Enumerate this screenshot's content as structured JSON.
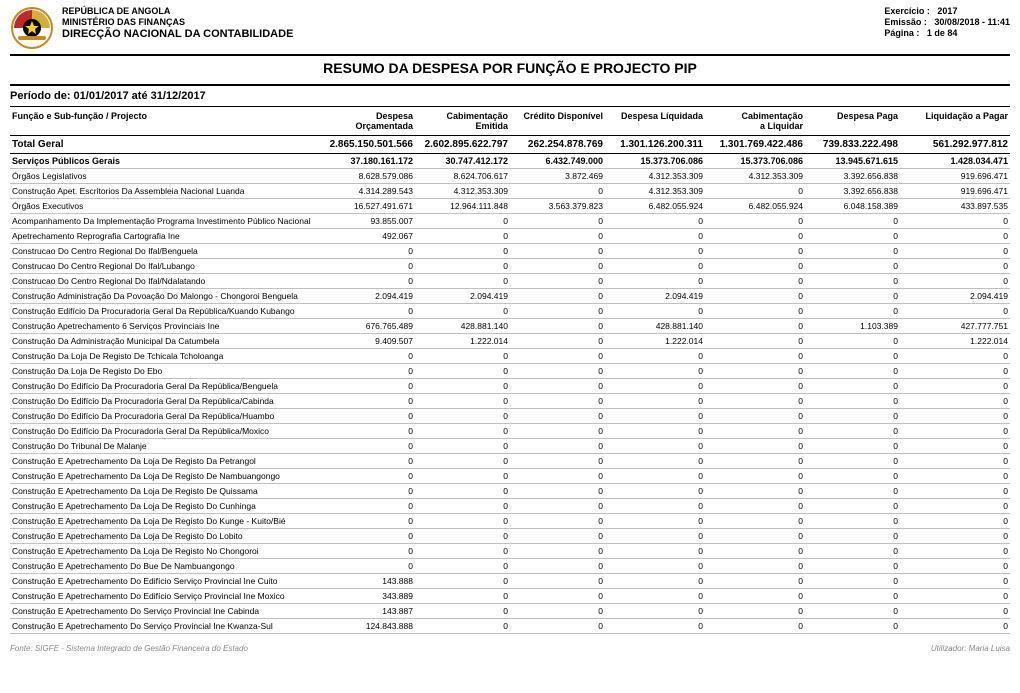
{
  "header": {
    "republica": "REPÚBLICA DE ANGOLA",
    "ministerio": "MINISTÉRIO DAS FINANÇAS",
    "direccao": "DIRECÇÃO NACIONAL DA CONTABILIDADE",
    "exercicio_label": "Exercício :",
    "exercicio_value": "2017",
    "emissao_label": "Emissão   :",
    "emissao_value": "30/08/2018  -  11:41",
    "pagina_label": "Página     :",
    "pagina_value": "1  de 84"
  },
  "title": "RESUMO DA DESPESA POR FUNÇÃO E PROJECTO PIP",
  "periodo": "Período de: 01/01/2017 até 31/12/2017",
  "columns": {
    "widths": [
      310,
      95,
      95,
      95,
      100,
      100,
      95,
      110
    ],
    "headers": [
      "Função e Sub-função / Projecto",
      "Despesa Orçamentada",
      "Cabimentação Emitida",
      "Crédito Disponível",
      "Despesa Líquidada",
      "Cabimentação a Liquidar",
      "Despesa Paga",
      "Liquidação a Pagar"
    ]
  },
  "rows": [
    {
      "type": "total",
      "indent": 0,
      "label": "Total Geral",
      "vals": [
        "2.865.150.501.566",
        "2.602.895.622.797",
        "262.254.878.769",
        "1.301.126.200.311",
        "1.301.769.422.486",
        "739.833.222.498",
        "561.292.977.812"
      ]
    },
    {
      "type": "section",
      "indent": 0,
      "label": "Serviços Públicos Gerais",
      "vals": [
        "37.180.161.172",
        "30.747.412.172",
        "6.432.749.000",
        "15.373.706.086",
        "15.373.706.086",
        "13.945.671.615",
        "1.428.034.471"
      ]
    },
    {
      "type": "sub1",
      "indent": 1,
      "label": "Órgãos Legislativos",
      "vals": [
        "8.628.579.086",
        "8.624.706.617",
        "3.872.469",
        "4.312.353.309",
        "4.312.353.309",
        "3.392.656.838",
        "919.696.471"
      ]
    },
    {
      "type": "sub2",
      "indent": 2,
      "label": "Construção Apet. Escritorios Da Assembleia Nacional Luanda",
      "vals": [
        "4.314.289.543",
        "4.312.353.309",
        "0",
        "4.312.353.309",
        "0",
        "3.392.656.838",
        "919.696.471"
      ]
    },
    {
      "type": "sub1",
      "indent": 1,
      "label": "Órgãos Executivos",
      "vals": [
        "16.527.491.671",
        "12.964.111.848",
        "3.563.379.823",
        "6.482.055.924",
        "6.482.055.924",
        "6.048.158.389",
        "433.897.535"
      ]
    },
    {
      "type": "sub3",
      "indent": 2,
      "label": "Acompanhamento Da Implementação Programa Investimento Público Nacional",
      "vals": [
        "93.855.007",
        "0",
        "0",
        "0",
        "0",
        "0",
        "0"
      ]
    },
    {
      "type": "sub3",
      "indent": 2,
      "label": "Apetrechamento  Reprografia Cartografia Ine",
      "vals": [
        "492.067",
        "0",
        "0",
        "0",
        "0",
        "0",
        "0"
      ]
    },
    {
      "type": "sub3",
      "indent": 2,
      "label": "Construcao Do Centro Regional Do Ifal/Benguela",
      "vals": [
        "0",
        "0",
        "0",
        "0",
        "0",
        "0",
        "0"
      ]
    },
    {
      "type": "sub3",
      "indent": 2,
      "label": "Construcao Do Centro Regional Do Ifal/Lubango",
      "vals": [
        "0",
        "0",
        "0",
        "0",
        "0",
        "0",
        "0"
      ]
    },
    {
      "type": "sub3",
      "indent": 2,
      "label": "Construcao Do Centro Regional Do Ifal/Ndalatando",
      "vals": [
        "0",
        "0",
        "0",
        "0",
        "0",
        "0",
        "0"
      ]
    },
    {
      "type": "sub3",
      "indent": 2,
      "label": "Construção  Administração Da Povoação Do Malongo - Chongoroi Benguela",
      "vals": [
        "2.094.419",
        "2.094.419",
        "0",
        "2.094.419",
        "0",
        "0",
        "2.094.419"
      ]
    },
    {
      "type": "sub3",
      "indent": 2,
      "label": "Construção  Edifício Da Procuradoria Geral Da República/Kuando Kubango",
      "vals": [
        "0",
        "0",
        "0",
        "0",
        "0",
        "0",
        "0"
      ]
    },
    {
      "type": "sub3",
      "indent": 2,
      "label": "Construção Apetrechamento 6  Serviços Provinciais Ine",
      "vals": [
        "676.765.489",
        "428.881.140",
        "0",
        "428.881.140",
        "0",
        "1.103.389",
        "427.777.751"
      ]
    },
    {
      "type": "sub3",
      "indent": 2,
      "label": "Construção Da Administração Municipal Da Catumbela",
      "vals": [
        "9.409.507",
        "1.222.014",
        "0",
        "1.222.014",
        "0",
        "0",
        "1.222.014"
      ]
    },
    {
      "type": "sub3",
      "indent": 2,
      "label": "Construção Da Loja De Registo De Tchicala Tcholoanga",
      "vals": [
        "0",
        "0",
        "0",
        "0",
        "0",
        "0",
        "0"
      ]
    },
    {
      "type": "sub3",
      "indent": 2,
      "label": "Construção Da Loja De Registo Do Ebo",
      "vals": [
        "0",
        "0",
        "0",
        "0",
        "0",
        "0",
        "0"
      ]
    },
    {
      "type": "sub3",
      "indent": 2,
      "label": "Construção Do Edifício Da Procuradoria Geral Da República/Benguela",
      "vals": [
        "0",
        "0",
        "0",
        "0",
        "0",
        "0",
        "0"
      ]
    },
    {
      "type": "sub3",
      "indent": 2,
      "label": "Construção Do Edifício Da Procuradoria Geral Da República/Cabinda",
      "vals": [
        "0",
        "0",
        "0",
        "0",
        "0",
        "0",
        "0"
      ]
    },
    {
      "type": "sub3",
      "indent": 2,
      "label": "Construção Do Edifício Da Procuradoria Geral Da República/Huambo",
      "vals": [
        "0",
        "0",
        "0",
        "0",
        "0",
        "0",
        "0"
      ]
    },
    {
      "type": "sub3",
      "indent": 2,
      "label": "Construção Do Edifício Da Procuradoria Geral Da República/Moxico",
      "vals": [
        "0",
        "0",
        "0",
        "0",
        "0",
        "0",
        "0"
      ]
    },
    {
      "type": "sub3",
      "indent": 2,
      "label": "Construção Do Tribunal De Malanje",
      "vals": [
        "0",
        "0",
        "0",
        "0",
        "0",
        "0",
        "0"
      ]
    },
    {
      "type": "sub3",
      "indent": 2,
      "label": "Construção E Apetrechamento Da Loja De Registo Da Petrangol",
      "vals": [
        "0",
        "0",
        "0",
        "0",
        "0",
        "0",
        "0"
      ]
    },
    {
      "type": "sub3",
      "indent": 2,
      "label": "Construção E Apetrechamento Da Loja De Registo De Nambuangongo",
      "vals": [
        "0",
        "0",
        "0",
        "0",
        "0",
        "0",
        "0"
      ]
    },
    {
      "type": "sub3",
      "indent": 2,
      "label": "Construção E Apetrechamento Da Loja De Registo De Quissama",
      "vals": [
        "0",
        "0",
        "0",
        "0",
        "0",
        "0",
        "0"
      ]
    },
    {
      "type": "sub3",
      "indent": 2,
      "label": "Construção E Apetrechamento Da Loja De Registo Do Cunhinga",
      "vals": [
        "0",
        "0",
        "0",
        "0",
        "0",
        "0",
        "0"
      ]
    },
    {
      "type": "sub3",
      "indent": 2,
      "label": "Construção E Apetrechamento Da Loja De Registo Do Kunge - Kuito/Bié",
      "vals": [
        "0",
        "0",
        "0",
        "0",
        "0",
        "0",
        "0"
      ]
    },
    {
      "type": "sub3",
      "indent": 2,
      "label": "Construção E Apetrechamento Da Loja De Registo Do Lobito",
      "vals": [
        "0",
        "0",
        "0",
        "0",
        "0",
        "0",
        "0"
      ]
    },
    {
      "type": "sub3",
      "indent": 2,
      "label": "Construção E Apetrechamento Da Loja De Registo No Chongoroi",
      "vals": [
        "0",
        "0",
        "0",
        "0",
        "0",
        "0",
        "0"
      ]
    },
    {
      "type": "sub3",
      "indent": 2,
      "label": "Construção E Apetrechamento Do Bue De Nambuangongo",
      "vals": [
        "0",
        "0",
        "0",
        "0",
        "0",
        "0",
        "0"
      ]
    },
    {
      "type": "sub3",
      "indent": 2,
      "label": "Construção E Apetrechamento Do Edifício Serviço Provincial Ine Cuito",
      "vals": [
        "143.888",
        "0",
        "0",
        "0",
        "0",
        "0",
        "0"
      ]
    },
    {
      "type": "sub3",
      "indent": 2,
      "label": "Construção E Apetrechamento Do Edifício Serviço Provincial Ine Moxico",
      "vals": [
        "343.889",
        "0",
        "0",
        "0",
        "0",
        "0",
        "0"
      ]
    },
    {
      "type": "sub3",
      "indent": 2,
      "label": "Construção E Apetrechamento Do Serviço Provincial Ine Cabinda",
      "vals": [
        "143.887",
        "0",
        "0",
        "0",
        "0",
        "0",
        "0"
      ]
    },
    {
      "type": "sub3",
      "indent": 2,
      "label": "Construção E Apetrechamento Do Serviço Provincial Ine Kwanza-Sul",
      "vals": [
        "124.843.888",
        "0",
        "0",
        "0",
        "0",
        "0",
        "0"
      ]
    }
  ],
  "footer": {
    "left": "Fonte: SIGFE - Sistema Integrado de Gestão  Financeira do Estado",
    "right": "Utilizador: Maria Luisa"
  },
  "colors": {
    "text": "#000000",
    "rule_light": "#c0c0c0",
    "footer_text": "#888888",
    "background": "#ffffff"
  }
}
